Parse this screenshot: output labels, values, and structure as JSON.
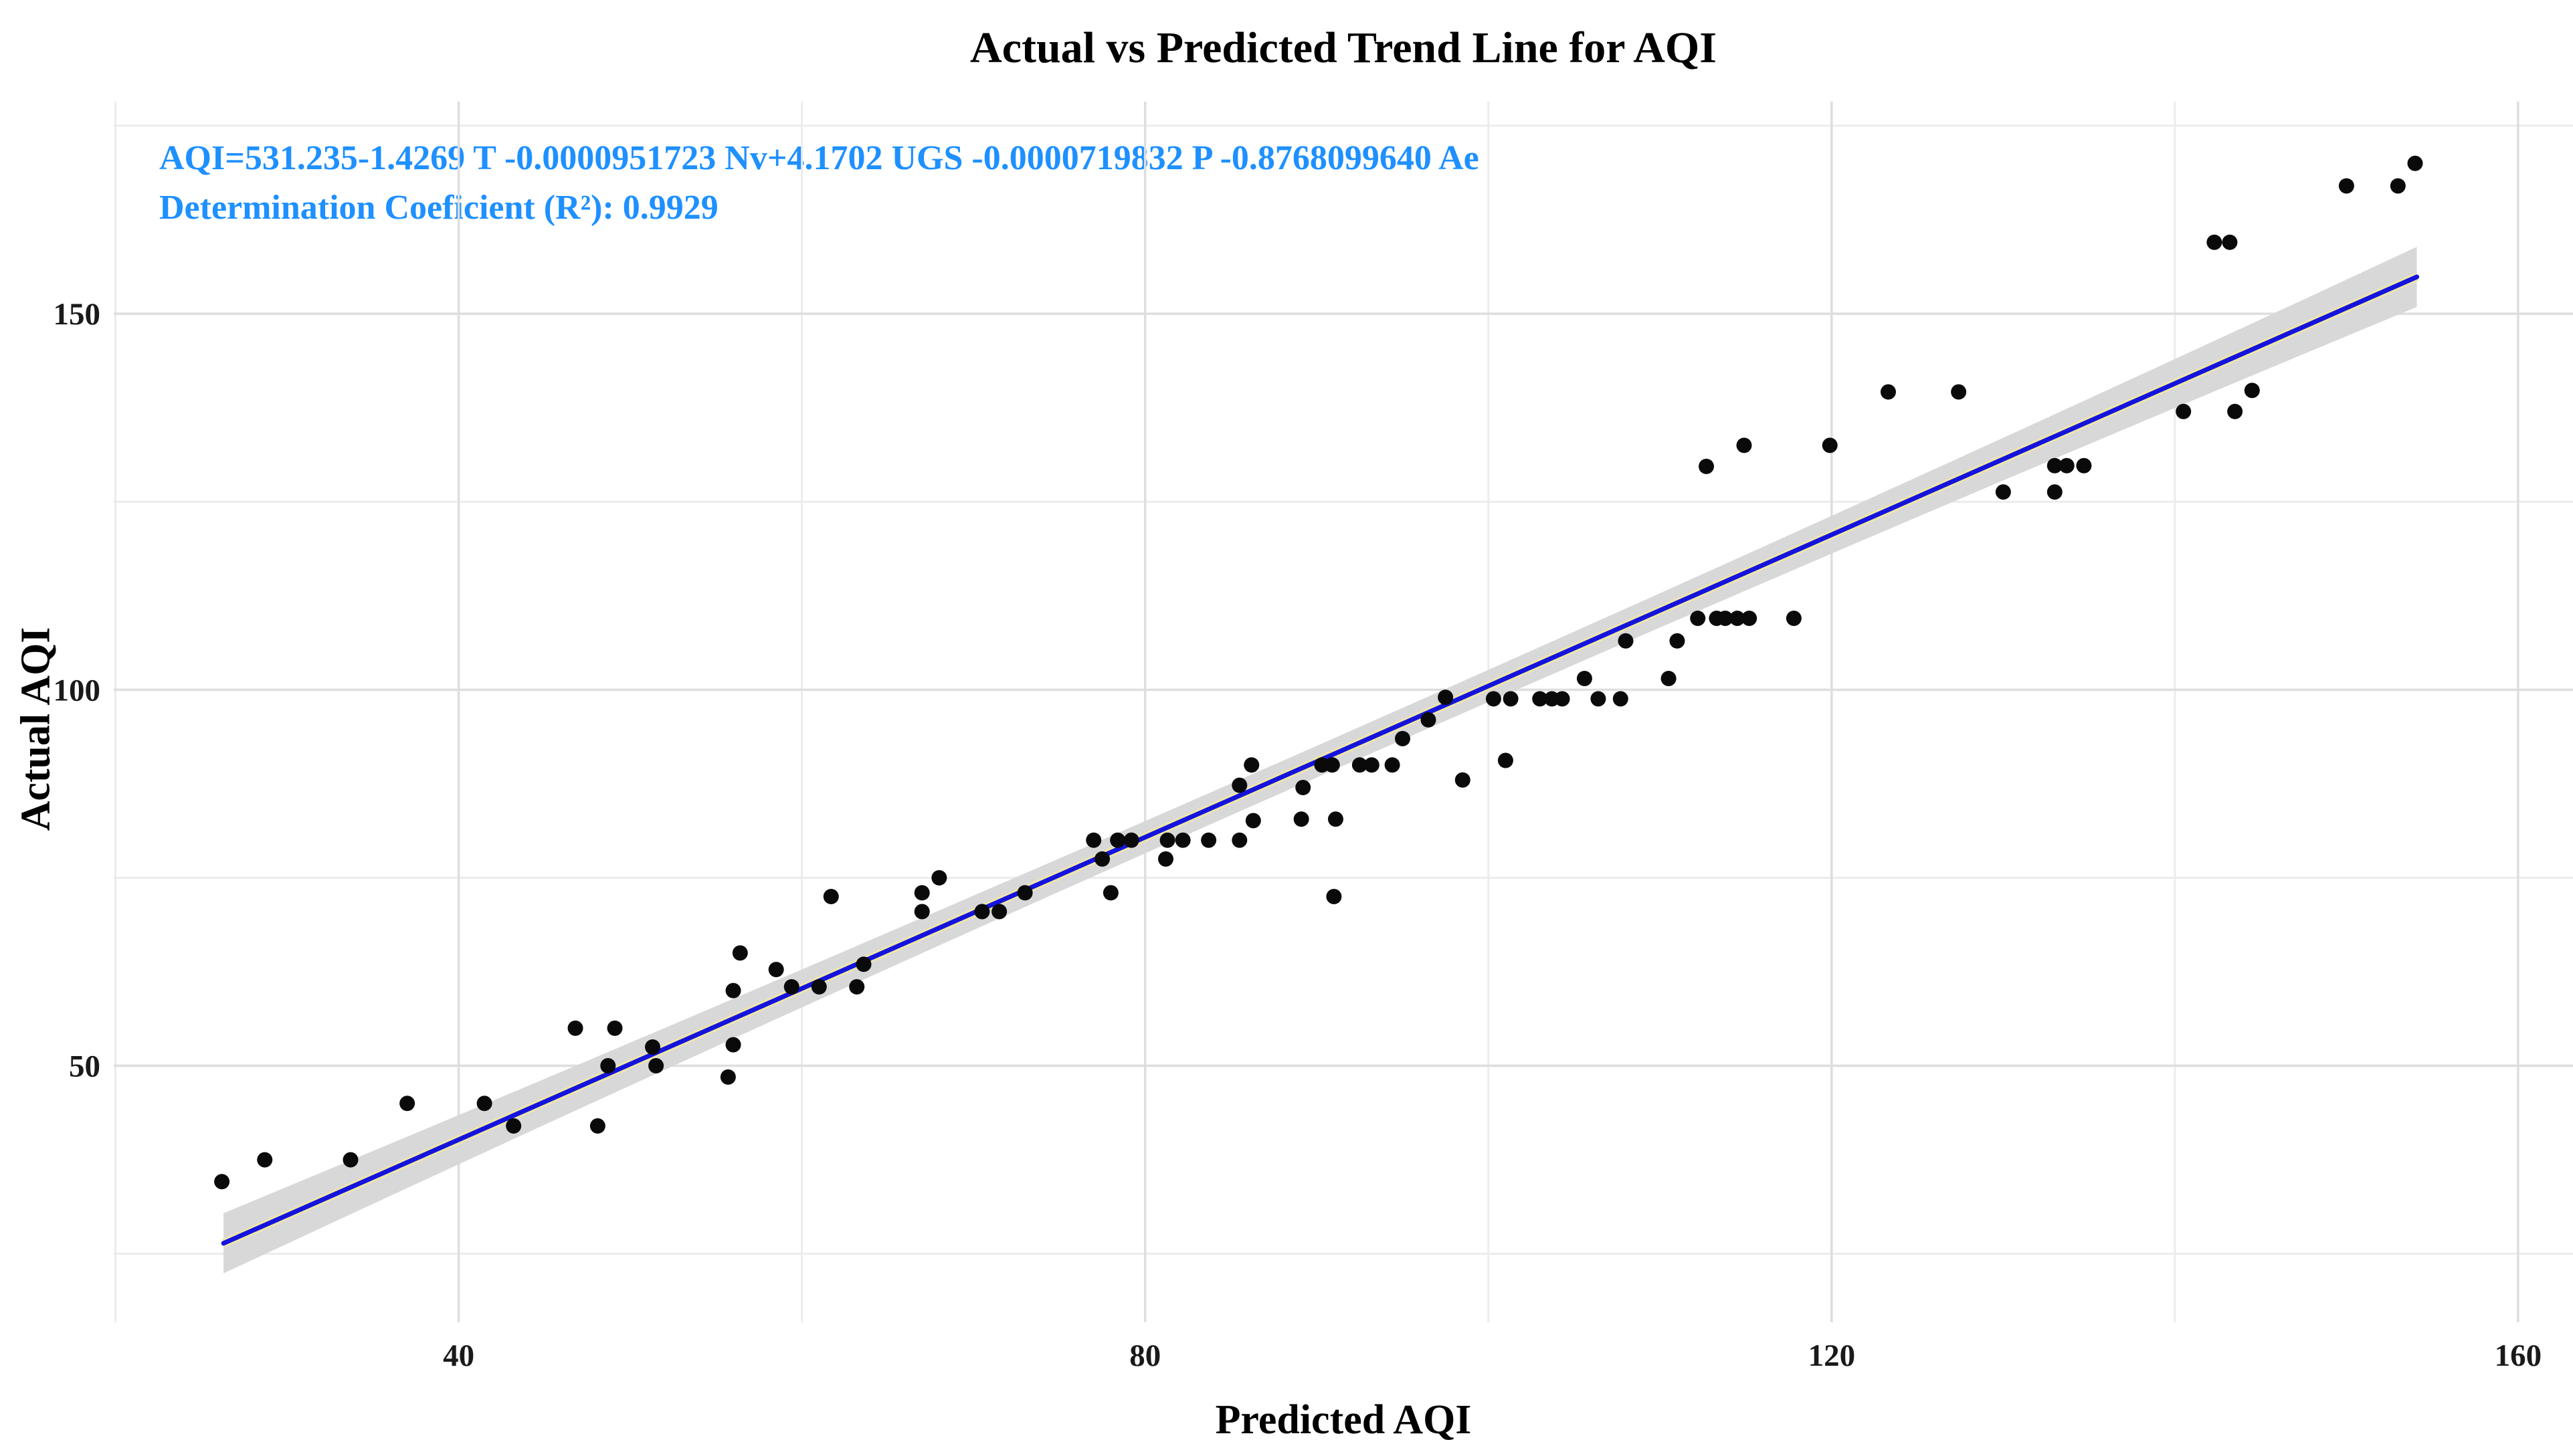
{
  "annotation": {
    "line1": "AQI=531.235-1.4269 T -0.0000951723 Nv+4.1702 UGS -0.0000719832 P -0.8768099640 Ae",
    "line2": "Determination Coeficient (R²): 0.9929",
    "color": "#1e90ff"
  },
  "chart_data": {
    "type": "scatter",
    "title": "Actual vs Predicted Trend Line for AQI",
    "xlabel": "Predicted AQI",
    "ylabel": "Actual AQI",
    "xlim": [
      19.9,
      163.2
    ],
    "ylim": [
      15.9,
      178.2
    ],
    "x_ticks": [
      40,
      80,
      120,
      160
    ],
    "x_minor_ticks": [
      20,
      60,
      100,
      140
    ],
    "y_ticks": [
      50,
      100,
      150
    ],
    "y_minor_ticks": [
      25,
      75,
      125,
      175
    ],
    "grid": true,
    "legend_position": "none",
    "points": [
      [
        26.2,
        34.6
      ],
      [
        28.7,
        37.5
      ],
      [
        33.7,
        37.5
      ],
      [
        37,
        45
      ],
      [
        41.5,
        45
      ],
      [
        43.2,
        42
      ],
      [
        48.1,
        42
      ],
      [
        46.8,
        55
      ],
      [
        49.1,
        55
      ],
      [
        51.3,
        52.5
      ],
      [
        48.7,
        50
      ],
      [
        51.5,
        50
      ],
      [
        56,
        52.8
      ],
      [
        55.7,
        48.5
      ],
      [
        56.4,
        65
      ],
      [
        56,
        60
      ],
      [
        58.5,
        62.8
      ],
      [
        59.4,
        60.5
      ],
      [
        61,
        60.5
      ],
      [
        63.2,
        60.5
      ],
      [
        63.6,
        63.5
      ],
      [
        61.7,
        72.5
      ],
      [
        67,
        73
      ],
      [
        67,
        70.5
      ],
      [
        70.5,
        70.5
      ],
      [
        71.5,
        70.5
      ],
      [
        68,
        75
      ],
      [
        73,
        73
      ],
      [
        78,
        73
      ],
      [
        77,
        80
      ],
      [
        78.4,
        80
      ],
      [
        79.2,
        80
      ],
      [
        77.5,
        77.5
      ],
      [
        81.2,
        77.5
      ],
      [
        81.3,
        80
      ],
      [
        82.2,
        80
      ],
      [
        83.7,
        80
      ],
      [
        85.5,
        80
      ],
      [
        85.5,
        87.3
      ],
      [
        86.2,
        90
      ],
      [
        89.2,
        87
      ],
      [
        90.3,
        90
      ],
      [
        90.9,
        90
      ],
      [
        92.5,
        90
      ],
      [
        93.2,
        90
      ],
      [
        94.4,
        90
      ],
      [
        86.3,
        82.6
      ],
      [
        89.1,
        82.8
      ],
      [
        91.1,
        82.8
      ],
      [
        91,
        72.5
      ],
      [
        95,
        93.5
      ],
      [
        96.5,
        96
      ],
      [
        97.5,
        99
      ],
      [
        98.5,
        88
      ],
      [
        100.3,
        98.8
      ],
      [
        101,
        90.6
      ],
      [
        101.3,
        98.8
      ],
      [
        103,
        98.8
      ],
      [
        103.7,
        98.8
      ],
      [
        104.3,
        98.8
      ],
      [
        106.4,
        98.8
      ],
      [
        107.7,
        98.8
      ],
      [
        105.6,
        101.5
      ],
      [
        110.5,
        101.5
      ],
      [
        108,
        106.5
      ],
      [
        111,
        106.5
      ],
      [
        112.2,
        109.5
      ],
      [
        113.3,
        109.5
      ],
      [
        113.8,
        109.5
      ],
      [
        114.5,
        109.5
      ],
      [
        115.2,
        109.5
      ],
      [
        117.8,
        109.5
      ],
      [
        112.7,
        129.7
      ],
      [
        114.9,
        132.5
      ],
      [
        119.9,
        132.5
      ],
      [
        123.3,
        139.6
      ],
      [
        127.4,
        139.6
      ],
      [
        130,
        126.3
      ],
      [
        133,
        126.3
      ],
      [
        133,
        129.8
      ],
      [
        133.7,
        129.8
      ],
      [
        134.7,
        129.8
      ],
      [
        140.5,
        137
      ],
      [
        143.5,
        137
      ],
      [
        144.5,
        139.8
      ],
      [
        142.3,
        159.5
      ],
      [
        143.2,
        159.5
      ],
      [
        150,
        167
      ],
      [
        153,
        167
      ],
      [
        154,
        170
      ]
    ],
    "trend_line": {
      "x1": 26.3,
      "y1": 26.4,
      "x2": 154.1,
      "y2": 154.9,
      "color": "#1414dd"
    },
    "identity_line_color": "#efe6a8",
    "confidence_band": {
      "halfwidth_mid": 2.1,
      "halfwidth_end": 4.0,
      "color": "#d8d8d8"
    },
    "point_color": "#0a0a0a",
    "grid_major_color": "#dedede",
    "grid_minor_color": "#ececec",
    "tick_label_color": "#1a1a1a"
  }
}
